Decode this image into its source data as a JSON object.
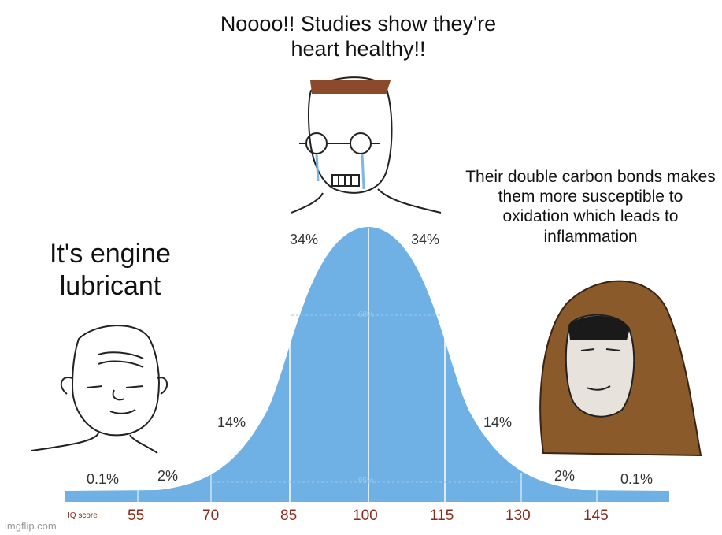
{
  "captions": {
    "left": "It's engine lubricant",
    "top": "Noooo!! Studies show they're heart healthy!!",
    "right": "Their double carbon bonds makes them more susceptible to oxidation which leads to inflammation"
  },
  "percentages": {
    "far_left": "0.1%",
    "left_2": "2%",
    "left_14": "14%",
    "left_34": "34%",
    "right_34": "34%",
    "right_14": "14%",
    "right_2": "2%",
    "far_right": "0.1%",
    "mid_68": "68%",
    "mid_95": "95%"
  },
  "axis": {
    "label": "IQ score",
    "ticks": [
      "55",
      "70",
      "85",
      "100",
      "115",
      "130",
      "145"
    ]
  },
  "watermark": "imgflip.com",
  "colors": {
    "curve_fill": "#6fb1e4",
    "baseline": "#6fb1e4",
    "tick_text": "#8a2a1e",
    "hood": "#8b5a2b"
  }
}
